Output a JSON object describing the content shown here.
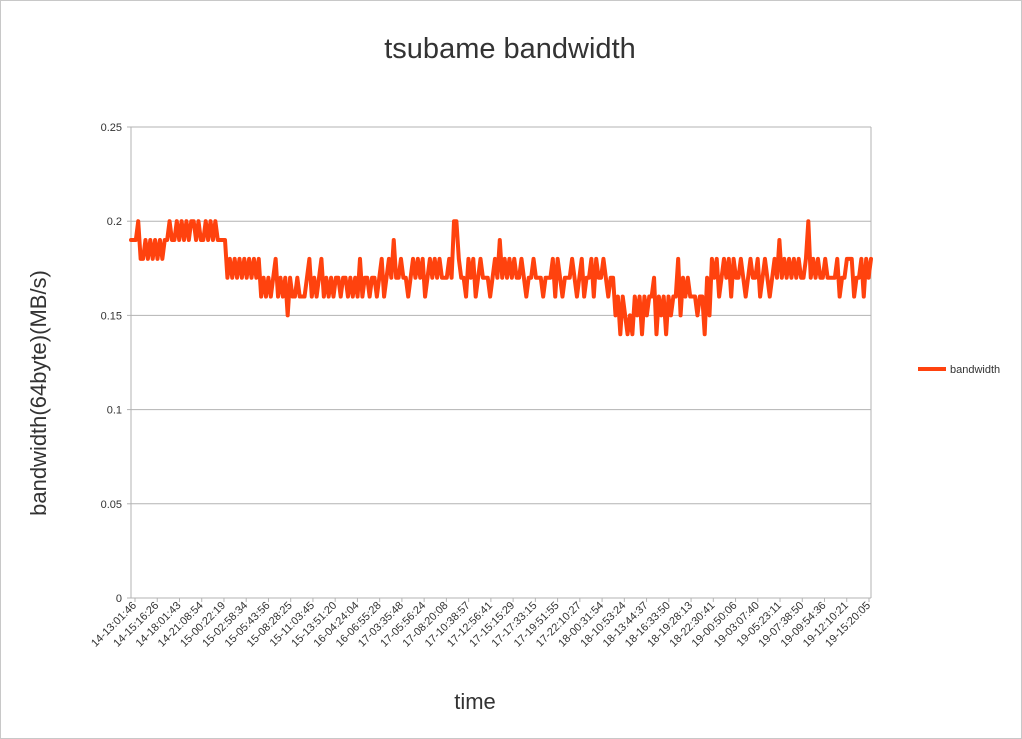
{
  "colors": {
    "series": "#ff420e",
    "grid": "#b3b3b3",
    "axis": "#b3b3b3",
    "text": "#333333"
  },
  "chart_data": {
    "type": "line",
    "title": "tsubame bandwidth",
    "xlabel": "time",
    "ylabel": "bandwidth(64byte)(MB/s)",
    "ylim": [
      0,
      0.25
    ],
    "yticks": [
      "0",
      "0.05",
      "0.1",
      "0.15",
      "0.2",
      "0.25"
    ],
    "ytick_values": [
      0,
      0.05,
      0.1,
      0.15,
      0.2,
      0.25
    ],
    "grid": true,
    "legend_position": "right",
    "xtick_labels": [
      "14-13:01:46",
      "14-15:16:26",
      "14-18:01:43",
      "14-21:08:54",
      "15-00:22:19",
      "15-02:58:34",
      "15-05:43:56",
      "15-08:28:25",
      "15-11:03:45",
      "15-13:51:20",
      "16-04:24:04",
      "16-06:55:28",
      "17-03:35:48",
      "17-05:56:24",
      "17-08:20:08",
      "17-10:38:57",
      "17-12:56:41",
      "17-15:15:29",
      "17-17:33:15",
      "17-19:51:55",
      "17-22:10:27",
      "18-00:31:54",
      "18-10:53:24",
      "18-13:44:37",
      "18-16:33:50",
      "18-19:28:13",
      "18-22:30:41",
      "19-00:50:06",
      "19-03:07:40",
      "19-05:23:11",
      "19-07:38:50",
      "19-09:54:36",
      "19-12:10:21",
      "19-15:20:05"
    ],
    "series": [
      {
        "name": "bandwidth",
        "values": [
          0.19,
          0.19,
          0.19,
          0.2,
          0.18,
          0.18,
          0.19,
          0.18,
          0.19,
          0.18,
          0.19,
          0.18,
          0.19,
          0.18,
          0.19,
          0.19,
          0.2,
          0.19,
          0.19,
          0.2,
          0.19,
          0.2,
          0.19,
          0.2,
          0.19,
          0.2,
          0.2,
          0.19,
          0.2,
          0.19,
          0.19,
          0.2,
          0.19,
          0.2,
          0.19,
          0.2,
          0.19,
          0.19,
          0.19,
          0.19,
          0.17,
          0.18,
          0.17,
          0.18,
          0.17,
          0.18,
          0.17,
          0.18,
          0.17,
          0.18,
          0.17,
          0.18,
          0.17,
          0.18,
          0.16,
          0.17,
          0.16,
          0.17,
          0.16,
          0.17,
          0.18,
          0.16,
          0.17,
          0.16,
          0.17,
          0.15,
          0.17,
          0.16,
          0.16,
          0.17,
          0.16,
          0.16,
          0.16,
          0.17,
          0.18,
          0.16,
          0.17,
          0.16,
          0.17,
          0.18,
          0.16,
          0.17,
          0.16,
          0.17,
          0.16,
          0.17,
          0.17,
          0.16,
          0.17,
          0.17,
          0.16,
          0.17,
          0.16,
          0.17,
          0.16,
          0.18,
          0.16,
          0.17,
          0.17,
          0.16,
          0.17,
          0.17,
          0.16,
          0.17,
          0.18,
          0.16,
          0.17,
          0.18,
          0.17,
          0.19,
          0.17,
          0.17,
          0.18,
          0.17,
          0.17,
          0.16,
          0.17,
          0.18,
          0.17,
          0.18,
          0.17,
          0.18,
          0.16,
          0.17,
          0.18,
          0.17,
          0.18,
          0.17,
          0.18,
          0.17,
          0.17,
          0.17,
          0.18,
          0.17,
          0.2,
          0.2,
          0.18,
          0.17,
          0.17,
          0.16,
          0.18,
          0.17,
          0.18,
          0.16,
          0.17,
          0.18,
          0.17,
          0.17,
          0.17,
          0.16,
          0.17,
          0.18,
          0.17,
          0.19,
          0.17,
          0.18,
          0.17,
          0.18,
          0.17,
          0.18,
          0.17,
          0.17,
          0.18,
          0.17,
          0.16,
          0.17,
          0.17,
          0.18,
          0.17,
          0.17,
          0.17,
          0.16,
          0.17,
          0.17,
          0.17,
          0.18,
          0.16,
          0.18,
          0.17,
          0.16,
          0.17,
          0.17,
          0.17,
          0.18,
          0.17,
          0.16,
          0.17,
          0.18,
          0.16,
          0.17,
          0.17,
          0.18,
          0.16,
          0.18,
          0.17,
          0.17,
          0.18,
          0.17,
          0.16,
          0.17,
          0.17,
          0.15,
          0.16,
          0.14,
          0.16,
          0.15,
          0.14,
          0.15,
          0.14,
          0.16,
          0.15,
          0.16,
          0.14,
          0.16,
          0.15,
          0.16,
          0.16,
          0.17,
          0.14,
          0.16,
          0.15,
          0.16,
          0.14,
          0.16,
          0.15,
          0.16,
          0.16,
          0.18,
          0.15,
          0.17,
          0.16,
          0.17,
          0.16,
          0.16,
          0.16,
          0.15,
          0.16,
          0.16,
          0.14,
          0.17,
          0.15,
          0.18,
          0.17,
          0.18,
          0.16,
          0.17,
          0.18,
          0.17,
          0.18,
          0.16,
          0.18,
          0.17,
          0.17,
          0.18,
          0.17,
          0.16,
          0.17,
          0.18,
          0.17,
          0.17,
          0.18,
          0.16,
          0.17,
          0.18,
          0.17,
          0.16,
          0.17,
          0.18,
          0.17,
          0.19,
          0.17,
          0.18,
          0.17,
          0.18,
          0.17,
          0.18,
          0.17,
          0.18,
          0.17,
          0.17,
          0.18,
          0.2,
          0.17,
          0.18,
          0.17,
          0.18,
          0.17,
          0.17,
          0.18,
          0.17,
          0.17,
          0.17,
          0.17,
          0.18,
          0.16,
          0.17,
          0.17,
          0.18,
          0.18,
          0.18,
          0.16,
          0.17,
          0.17,
          0.18,
          0.16,
          0.18,
          0.17,
          0.18
        ]
      }
    ]
  }
}
